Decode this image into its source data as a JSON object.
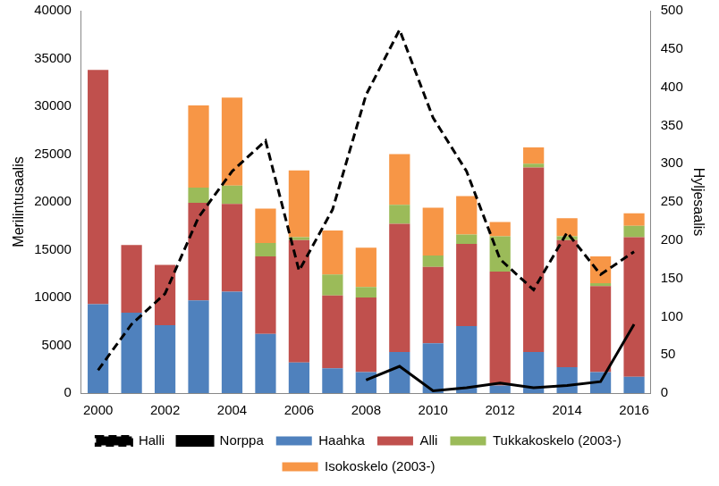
{
  "chart_data": {
    "type": "bar",
    "stacked": true,
    "grid": false,
    "legend": "bottom",
    "y_label": "Merilintusaalis",
    "y2_label": "Hyljesaalis",
    "categories": [
      "2000",
      null,
      "2002",
      null,
      "2004",
      null,
      "2006",
      null,
      "2008",
      null,
      "2010",
      null,
      "2012",
      null,
      "2014",
      null,
      "2016"
    ],
    "ylim": [
      0,
      40000
    ],
    "yticks": [
      0,
      5000,
      10000,
      15000,
      20000,
      25000,
      30000,
      35000,
      40000
    ],
    "y2lim": [
      0,
      500
    ],
    "y2ticks": [
      0,
      50,
      100,
      150,
      200,
      250,
      300,
      350,
      400,
      450,
      500
    ],
    "series": [
      {
        "name": "Haahka",
        "type": "bar",
        "color": "#4f81bd",
        "values": [
          9300,
          8400,
          7100,
          9700,
          10600,
          6200,
          3200,
          2600,
          2200,
          4300,
          5200,
          7000,
          800,
          4300,
          2700,
          2200,
          1700
        ]
      },
      {
        "name": "Alli",
        "type": "bar",
        "color": "#c0504d",
        "values": [
          24500,
          7100,
          6300,
          10200,
          9200,
          8100,
          12800,
          7600,
          7800,
          13400,
          8000,
          8600,
          11900,
          19300,
          13300,
          9000,
          14600
        ]
      },
      {
        "name": "Tukkakoskelo (2003-)",
        "type": "bar",
        "color": "#9bbb59",
        "values": [
          null,
          null,
          null,
          1600,
          1900,
          1400,
          300,
          2200,
          1100,
          2000,
          1200,
          1000,
          3700,
          400,
          400,
          300,
          1200
        ]
      },
      {
        "name": "Isokoskelo (2003-)",
        "type": "bar",
        "color": "#f79646",
        "values": [
          null,
          null,
          null,
          8600,
          9200,
          3600,
          7000,
          4600,
          4100,
          5300,
          5000,
          4000,
          1500,
          1700,
          1900,
          2800,
          1300
        ]
      },
      {
        "name": "Halli",
        "type": "line",
        "axis": "y2",
        "color": "#000000",
        "line_style": "dashed",
        "marker": "none",
        "values": [
          30,
          90,
          130,
          230,
          290,
          330,
          160,
          240,
          390,
          475,
          360,
          290,
          175,
          135,
          210,
          155,
          185
        ]
      },
      {
        "name": "Norppa",
        "type": "line",
        "axis": "y2",
        "color": "#000000",
        "line_style": "solid",
        "marker": "none",
        "values": [
          null,
          null,
          null,
          null,
          null,
          null,
          null,
          null,
          17,
          35,
          3,
          7,
          13,
          7,
          10,
          15,
          90
        ]
      }
    ]
  }
}
